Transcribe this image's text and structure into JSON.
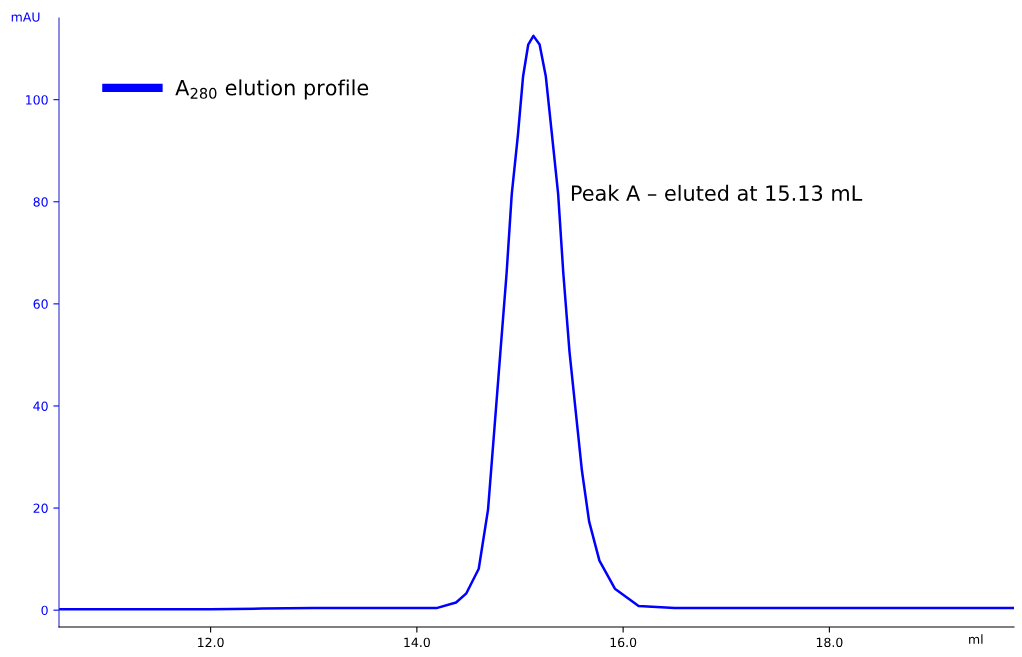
{
  "chart_data": {
    "type": "line",
    "xlabel": "ml",
    "ylabel": "mAU",
    "annotations": [
      "Peak A – eluted at 15.13 mL"
    ],
    "series": [
      {
        "name": "A$_{280}$ elution profile",
        "color": "#0000ff",
        "x": [
          10.53,
          11.0,
          11.5,
          12.0,
          12.5,
          13.0,
          13.5,
          14.0,
          14.19,
          14.38,
          14.48,
          14.6,
          14.69,
          14.75,
          14.81,
          14.87,
          14.92,
          14.98,
          15.03,
          15.08,
          15.13,
          15.19,
          15.25,
          15.31,
          15.37,
          15.42,
          15.48,
          15.54,
          15.6,
          15.67,
          15.77,
          15.92,
          16.15,
          16.5,
          17.0,
          17.5,
          18.0,
          18.5,
          19.0,
          19.5,
          19.79
        ],
        "values": [
          0.2,
          0.2,
          0.2,
          0.2,
          0.3,
          0.4,
          0.4,
          0.4,
          0.4,
          1.5,
          3.3,
          8.1,
          19.7,
          35.1,
          50.6,
          66.0,
          81.5,
          93.1,
          104.6,
          110.8,
          112.5,
          110.8,
          104.6,
          93.1,
          81.5,
          66.0,
          50.6,
          39.0,
          27.4,
          17.4,
          9.7,
          4.2,
          0.8,
          0.4,
          0.4,
          0.4,
          0.4,
          0.4,
          0.4,
          0.4,
          0.4
        ]
      }
    ],
    "xlim": [
      10.53,
      19.79
    ],
    "xticks": [
      {
        "value": 12,
        "label": "12.0"
      },
      {
        "value": 14,
        "label": "14.0"
      },
      {
        "value": 16,
        "label": "16.0"
      },
      {
        "value": 18,
        "label": "18.0"
      }
    ],
    "ylim": [
      -3.3,
      116
    ],
    "yticks": [
      0,
      20,
      40,
      60,
      80,
      100
    ],
    "legend": "top left",
    "grid": false,
    "marker": "none",
    "line_style": "solid"
  }
}
